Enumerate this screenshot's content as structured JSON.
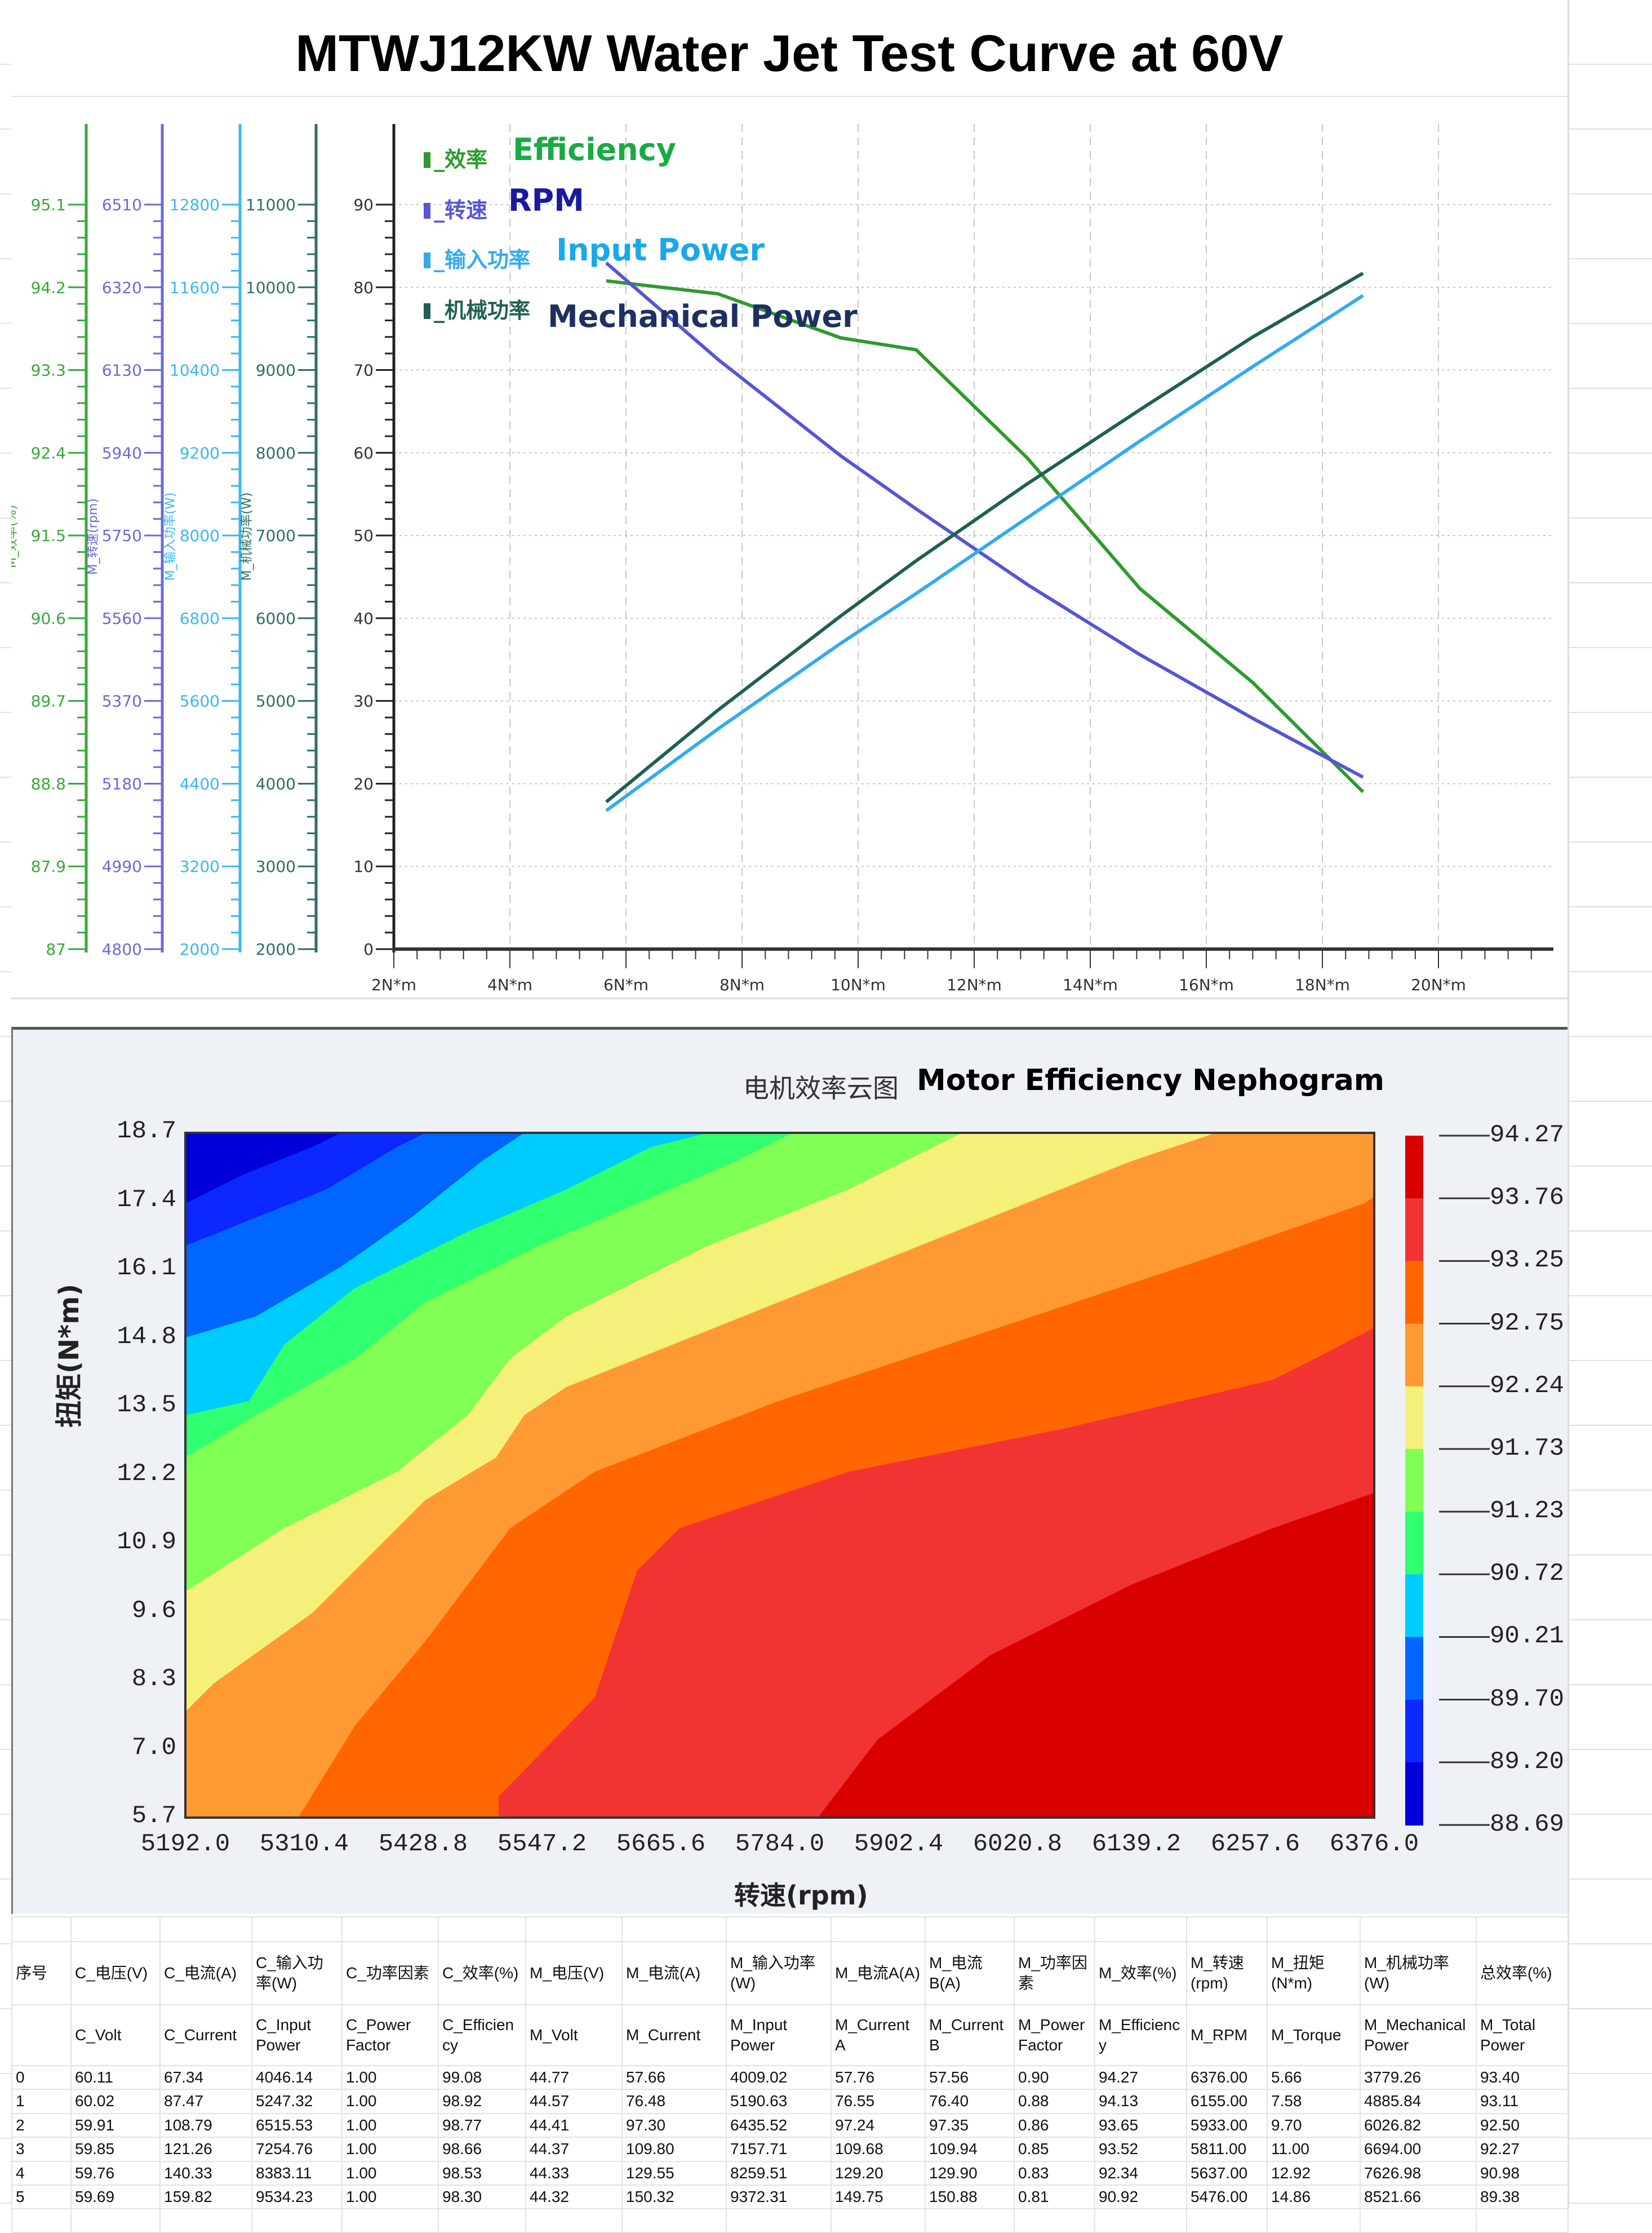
{
  "title": "MTWJ12KW Water Jet Test Curve at 60V",
  "chart_data": [
    {
      "type": "line",
      "title": "MTWJ12KW Water Jet Test Curve at 60V",
      "xlabel": "",
      "x_ticks": [
        "2N*m",
        "4N*m",
        "6N*m",
        "8N*m",
        "10N*m",
        "12N*m",
        "14N*m",
        "16N*m",
        "18N*m",
        "20N*m"
      ],
      "xlim": [
        2,
        22
      ],
      "grid": true,
      "legend_position": "top-left",
      "axes": [
        {
          "id": "main",
          "label": "",
          "ticks": [
            "0",
            "10",
            "20",
            "30",
            "40",
            "50",
            "60",
            "70",
            "80",
            "90"
          ],
          "ylim": [
            0,
            90
          ],
          "color": "#222222"
        },
        {
          "id": "eff",
          "label": "M_效率(%)",
          "ticks": [
            "87",
            "87.9",
            "88.8",
            "89.7",
            "90.6",
            "91.5",
            "92.4",
            "93.3",
            "94.2",
            "95.1"
          ],
          "ylim": [
            87,
            95.1
          ],
          "color": "#3aa83a"
        },
        {
          "id": "rpm",
          "label": "M_转速(rpm)",
          "ticks": [
            "4800",
            "4990",
            "5180",
            "5370",
            "5560",
            "5750",
            "5940",
            "6130",
            "6320",
            "6510"
          ],
          "ylim": [
            4800,
            6510
          ],
          "color": "#6a6ad8"
        },
        {
          "id": "inp",
          "label": "M_输入功率(W)",
          "ticks": [
            "2000",
            "3200",
            "4400",
            "5600",
            "6800",
            "8000",
            "9200",
            "10400",
            "11600",
            "12800"
          ],
          "ylim": [
            2000,
            12800
          ],
          "color": "#3bb8f0"
        },
        {
          "id": "mech",
          "label": "M_机械功率(W)",
          "ticks": [
            "2000",
            "3000",
            "4000",
            "5000",
            "6000",
            "7000",
            "8000",
            "9000",
            "10000",
            "11000"
          ],
          "ylim": [
            2000,
            11000
          ],
          "color": "#2e6e66"
        }
      ],
      "x": [
        5.66,
        7.58,
        9.7,
        11.0,
        12.92,
        14.86,
        16.8,
        18.7
      ],
      "series": [
        {
          "name": "_效率",
          "label_en": "Efficiency",
          "axis": "eff",
          "color": "#2e9a2e",
          "label_color": "#1aaa44",
          "values": [
            94.27,
            94.13,
            93.65,
            93.52,
            92.34,
            90.92,
            89.9,
            88.71
          ]
        },
        {
          "name": "_转速",
          "label_en": "RPM",
          "axis": "rpm",
          "color": "#5555d5",
          "label_color": "#1a1aa0",
          "values": [
            6376,
            6155,
            5933,
            5811,
            5637,
            5476,
            5330,
            5195
          ]
        },
        {
          "name": "_输入功率",
          "label_en": "Input Power",
          "axis": "inp",
          "color": "#33aaee",
          "label_color": "#1aa8e8",
          "values": [
            4009.02,
            5190.63,
            6435.52,
            7157.71,
            8259.51,
            9372.31,
            10450,
            11480
          ]
        },
        {
          "name": "_机械功率",
          "label_en": "Mechanical Power",
          "axis": "mech",
          "color": "#1f5f55",
          "label_color": "#1e3060",
          "values": [
            3779.26,
            4885.84,
            6026.82,
            6694.0,
            7626.98,
            8521.66,
            9400,
            10170
          ]
        }
      ]
    },
    {
      "type": "heatmap",
      "title_zh": "电机效率云图",
      "title_en": "Motor Efficiency Nephogram",
      "xlabel": "转速(rpm)",
      "ylabel": "扭矩(N*m)",
      "x_ticks": [
        "5192.0",
        "5310.4",
        "5428.8",
        "5547.2",
        "5665.6",
        "5784.0",
        "5902.4",
        "6020.8",
        "6139.2",
        "6257.6",
        "6376.0"
      ],
      "y_ticks": [
        "18.7",
        "17.4",
        "16.1",
        "14.8",
        "13.5",
        "12.2",
        "10.9",
        "9.6",
        "8.3",
        "7.0",
        "5.7"
      ],
      "xlim": [
        5192.0,
        6376.0
      ],
      "ylim": [
        5.7,
        18.7
      ],
      "colorbar_ticks": [
        "94.27",
        "93.76",
        "93.25",
        "92.75",
        "92.24",
        "91.73",
        "91.23",
        "90.72",
        "90.21",
        "89.70",
        "89.20",
        "88.69"
      ],
      "colorbar_colors": [
        "#d90000",
        "#f23333",
        "#ff6600",
        "#ff9933",
        "#f5f07a",
        "#80ff55",
        "#30ff70",
        "#00ccff",
        "#0066ff",
        "#0a28ff",
        "#0000d8"
      ]
    }
  ],
  "table": {
    "headers_zh": [
      "序号",
      "C_电压(V)",
      "C_电流(A)",
      "C_输入功率(W)",
      "C_功率因素",
      "C_效率(%)",
      "M_电压(V)",
      "M_电流(A)",
      "M_输入功率(W)",
      "M_电流A(A)",
      "M_电流B(A)",
      "M_功率因素",
      "M_效率(%)",
      "M_转速(rpm)",
      "M_扭矩(N*m)",
      "M_机械功率(W)",
      "总效率(%)"
    ],
    "headers_en": [
      "",
      "C_Volt",
      "C_Current",
      "C_Input Power",
      "C_Power Factor",
      "C_Efficiency",
      "M_Volt",
      "M_Current",
      "M_Input Power",
      "M_Current A",
      "M_Current B",
      "M_Power Factor",
      "M_Efficiency",
      "M_RPM",
      "M_Torque",
      "M_Mechanical Power",
      "M_Total Power"
    ],
    "rows": [
      [
        "0",
        "60.11",
        "67.34",
        "4046.14",
        "1.00",
        "99.08",
        "44.77",
        "57.66",
        "4009.02",
        "57.76",
        "57.56",
        "0.90",
        "94.27",
        "6376.00",
        "5.66",
        "3779.26",
        "93.40"
      ],
      [
        "1",
        "60.02",
        "87.47",
        "5247.32",
        "1.00",
        "98.92",
        "44.57",
        "76.48",
        "5190.63",
        "76.55",
        "76.40",
        "0.88",
        "94.13",
        "6155.00",
        "7.58",
        "4885.84",
        "93.11"
      ],
      [
        "2",
        "59.91",
        "108.79",
        "6515.53",
        "1.00",
        "98.77",
        "44.41",
        "97.30",
        "6435.52",
        "97.24",
        "97.35",
        "0.86",
        "93.65",
        "5933.00",
        "9.70",
        "6026.82",
        "92.50"
      ],
      [
        "3",
        "59.85",
        "121.26",
        "7254.76",
        "1.00",
        "98.66",
        "44.37",
        "109.80",
        "7157.71",
        "109.68",
        "109.94",
        "0.85",
        "93.52",
        "5811.00",
        "11.00",
        "6694.00",
        "92.27"
      ],
      [
        "4",
        "59.76",
        "140.33",
        "8383.11",
        "1.00",
        "98.53",
        "44.33",
        "129.55",
        "8259.51",
        "129.20",
        "129.90",
        "0.83",
        "92.34",
        "5637.00",
        "12.92",
        "7626.98",
        "90.98"
      ],
      [
        "5",
        "59.69",
        "159.82",
        "9534.23",
        "1.00",
        "98.30",
        "44.32",
        "150.32",
        "9372.31",
        "149.75",
        "150.88",
        "0.81",
        "90.92",
        "5476.00",
        "14.86",
        "8521.66",
        "89.38"
      ]
    ]
  }
}
